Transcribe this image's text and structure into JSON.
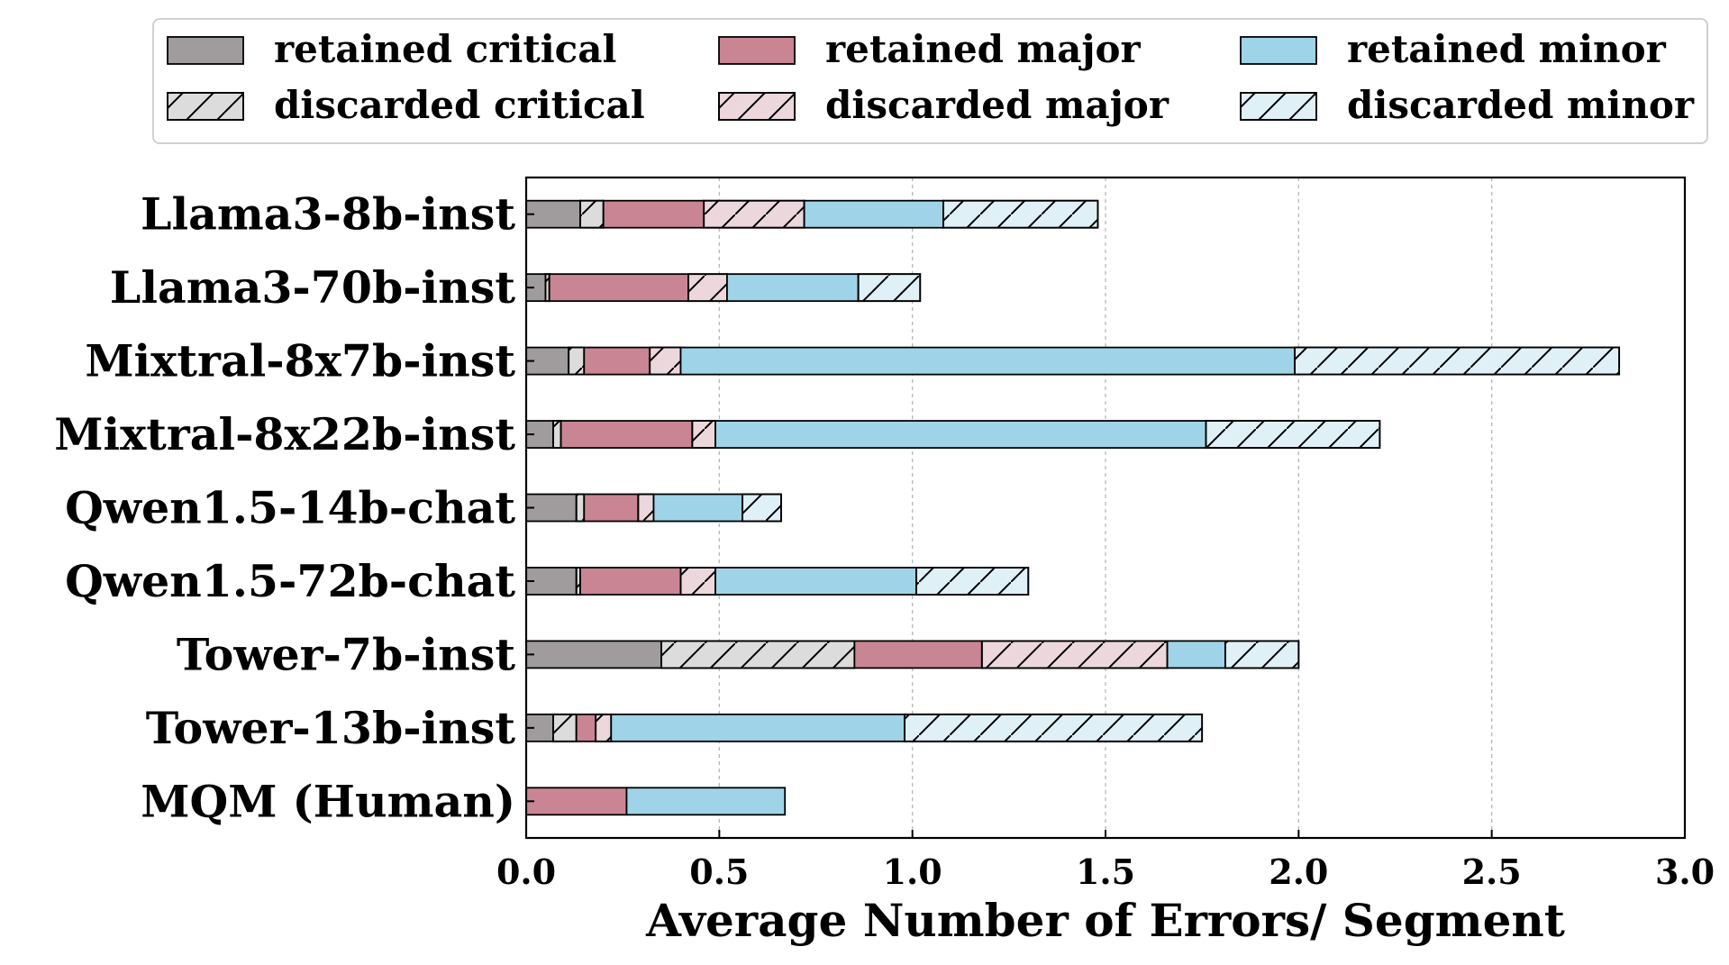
{
  "chart_data": {
    "type": "bar",
    "orientation": "horizontal",
    "stacked": true,
    "title": "",
    "xlabel": "Average Number of Errors/ Segment",
    "ylabel": "",
    "xlim": [
      0,
      3.0
    ],
    "xticks": [
      "0.0",
      "0.5",
      "1.0",
      "1.5",
      "2.0",
      "2.5",
      "3.0"
    ],
    "xtick_values": [
      0,
      0.5,
      1.0,
      1.5,
      2.0,
      2.5,
      3.0
    ],
    "grid": "vertical dashed",
    "legend_placement": "top",
    "categories": [
      "Llama3-8b-inst",
      "Llama3-70b-inst",
      "Mixtral-8x7b-inst",
      "Mixtral-8x22b-inst",
      "Qwen1.5-14b-chat",
      "Qwen1.5-72b-chat",
      "Tower-7b-inst",
      "Tower-13b-inst",
      "MQM (Human)"
    ],
    "series": [
      {
        "name": "retained critical",
        "color": "#a09c9d",
        "hatch": false,
        "values": [
          0.14,
          0.05,
          0.11,
          0.07,
          0.13,
          0.13,
          0.35,
          0.07,
          0.0
        ]
      },
      {
        "name": "discarded critical",
        "color": "#dcdcdc",
        "hatch": true,
        "values": [
          0.06,
          0.01,
          0.04,
          0.02,
          0.02,
          0.01,
          0.5,
          0.06,
          0.0
        ]
      },
      {
        "name": "retained major",
        "color": "#c98594",
        "hatch": false,
        "values": [
          0.26,
          0.36,
          0.17,
          0.34,
          0.14,
          0.26,
          0.33,
          0.05,
          0.26
        ]
      },
      {
        "name": "discarded major",
        "color": "#ecd7dc",
        "hatch": true,
        "values": [
          0.26,
          0.1,
          0.08,
          0.06,
          0.04,
          0.09,
          0.48,
          0.04,
          0.0
        ]
      },
      {
        "name": "retained minor",
        "color": "#9fd4e8",
        "hatch": false,
        "values": [
          0.36,
          0.34,
          1.59,
          1.27,
          0.23,
          0.52,
          0.15,
          0.76,
          0.41
        ]
      },
      {
        "name": "discarded minor",
        "color": "#dff0f7",
        "hatch": true,
        "values": [
          0.4,
          0.16,
          0.84,
          0.45,
          0.1,
          0.29,
          0.19,
          0.77,
          0.0
        ]
      }
    ]
  }
}
